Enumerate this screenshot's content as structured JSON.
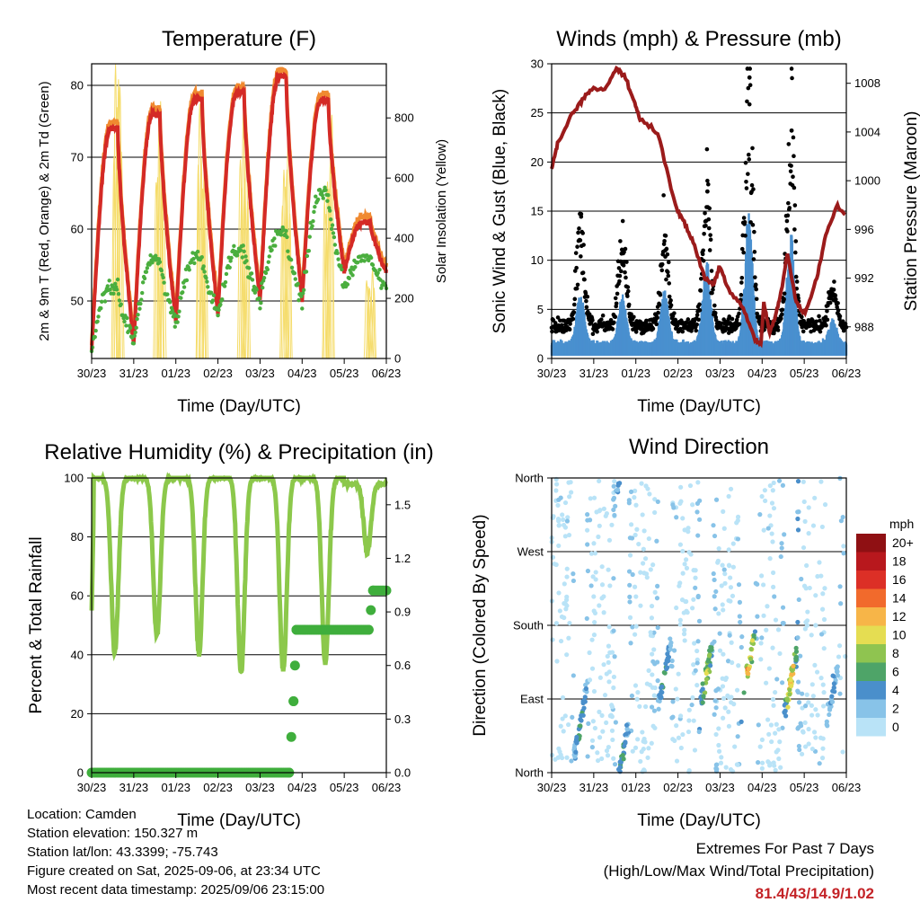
{
  "x_ticks": [
    "30/23",
    "31/23",
    "01/23",
    "02/23",
    "03/23",
    "04/23",
    "05/23",
    "06/23"
  ],
  "xlabel": "Time (Day/UTC)",
  "panels": {
    "temperature": {
      "title": "Temperature (F)",
      "ylabel_left": "2m & 9m T (Red, Orange) & 2m Td (Green)",
      "ylabel_right": "Solar Insolation (Yellow)",
      "left_ticks": [
        "50",
        "60",
        "70",
        "80"
      ],
      "right_ticks": [
        "0",
        "200",
        "400",
        "600",
        "800"
      ]
    },
    "winds": {
      "title": "Winds (mph) & Pressure (mb)",
      "ylabel_left": "Sonic Wind & Gust (Blue, Black)",
      "ylabel_right": "Station Pressure (Maroon)",
      "left_ticks": [
        "0",
        "5",
        "10",
        "15",
        "20",
        "25",
        "30"
      ],
      "right_ticks": [
        "988",
        "992",
        "996",
        "1000",
        "1004",
        "1008"
      ]
    },
    "humidity": {
      "title": "Relative Humidity (%) & Precipitation (in)",
      "ylabel_left": "Percent & Total Rainfall",
      "left_ticks": [
        "0",
        "20",
        "40",
        "60",
        "80",
        "100"
      ],
      "right_ticks": [
        "0.0",
        "0.3",
        "0.6",
        "0.9",
        "1.2",
        "1.5"
      ]
    },
    "direction": {
      "title": "Wind Direction",
      "ylabel_left": "Direction (Colored By Speed)",
      "dir_ticks": [
        "North",
        "East",
        "South",
        "West",
        "North"
      ],
      "legend_title": "mph",
      "legend_labels": [
        "0",
        "2",
        "4",
        "6",
        "8",
        "10",
        "12",
        "14",
        "16",
        "18",
        "20+"
      ],
      "legend_colors": [
        "#b9e3f7",
        "#88c3e8",
        "#4a8fcb",
        "#4ea468",
        "#8fc450",
        "#e5dd52",
        "#f7b548",
        "#f16a2c",
        "#dc2f26",
        "#b8181d",
        "#8f1013"
      ]
    }
  },
  "station_info": {
    "location": "Location: Camden",
    "elevation": "Station elevation: 150.327 m",
    "latlon": "Station lat/lon: 43.3399; -75.743",
    "created": "Figure created on Sat, 2025-09-06, at 23:34 UTC",
    "recent": "Most recent data timestamp: 2025/09/06 23:15:00"
  },
  "extremes": {
    "line1": "Extremes For Past 7 Days",
    "line2": "(High/Low/Max Wind/Total Precipitation)",
    "values": "81.4/43/14.9/1.02"
  },
  "colors": {
    "temp_2m": "#d42a26",
    "temp_9m": "#f08a30",
    "dewpoint": "#4aae3e",
    "solar": "#f5dc6a",
    "wind": "#4a90cf",
    "gust": "#000000",
    "pressure": "#9b1b1b",
    "rh": "#8cc84b",
    "precip": "#3fae3c"
  },
  "chart_data": [
    {
      "type": "line",
      "title": "Temperature (F)",
      "xlabel": "Time (Day/UTC)",
      "ylabel": "2m & 9m T (Red, Orange) & 2m Td (Green)",
      "y2label": "Solar Insolation (Yellow)",
      "x": [
        "30/23",
        "31/23",
        "01/23",
        "02/23",
        "03/23",
        "04/23",
        "05/23",
        "06/23"
      ],
      "ylim": [
        42,
        83
      ],
      "y2lim": [
        0,
        980
      ],
      "series": [
        {
          "name": "2m T",
          "color": "#d42a26",
          "day_max": [
            74,
            76,
            78,
            79,
            81.4,
            78,
            61
          ],
          "day_min": [
            43,
            44,
            47,
            48,
            50,
            50,
            54
          ]
        },
        {
          "name": "2m Td",
          "color": "#4aae3e",
          "day_max": [
            52,
            56,
            56,
            57,
            59,
            65,
            56
          ],
          "day_min": [
            43,
            44,
            47,
            48,
            50,
            50,
            52
          ]
        },
        {
          "name": "Solar",
          "color": "#f5dc6a",
          "day_peak": [
            980,
            920,
            900,
            870,
            860,
            870,
            300
          ]
        }
      ]
    },
    {
      "type": "scatter",
      "title": "Winds (mph) & Pressure (mb)",
      "xlabel": "Time (Day/UTC)",
      "ylabel": "Sonic Wind & Gust (Blue, Black)",
      "y2label": "Station Pressure (Maroon)",
      "x": [
        "30/23",
        "31/23",
        "01/23",
        "02/23",
        "03/23",
        "04/23",
        "05/23",
        "06/23"
      ],
      "ylim": [
        0,
        30
      ],
      "y2lim": [
        985.4,
        1009.6
      ],
      "series": [
        {
          "name": "Gust",
          "color": "#000000",
          "day_max": [
            14.7,
            11,
            11,
            17,
            28.6,
            23.2,
            7
          ]
        },
        {
          "name": "Wind",
          "color": "#4a90cf",
          "day_max": [
            6.5,
            6.5,
            7,
            10,
            14.9,
            13,
            4
          ]
        },
        {
          "name": "Pressure",
          "color": "#9b1b1b",
          "x_frac": [
            0,
            0.02,
            0.07,
            0.1,
            0.13,
            0.18,
            0.22,
            0.25,
            0.28,
            0.3,
            0.36,
            0.42,
            0.45,
            0.48,
            0.52,
            0.55,
            0.57,
            0.6,
            0.65,
            0.69,
            0.71,
            0.72,
            0.74,
            0.76,
            0.78,
            0.8,
            0.83,
            0.86,
            0.9,
            0.93,
            0.97,
            1.0
          ],
          "y": [
            1001,
            1003,
            1005.5,
            1006.5,
            1007.5,
            1007.5,
            1009.2,
            1008.5,
            1006.5,
            1005,
            1004,
            998,
            996.5,
            995,
            992,
            991.5,
            993,
            991,
            989.5,
            987,
            986.5,
            990,
            987.5,
            989,
            991,
            994,
            990,
            989,
            992,
            995.5,
            998,
            997
          ]
        }
      ]
    },
    {
      "type": "line",
      "title": "Relative Humidity (%) & Precipitation (in)",
      "xlabel": "Time (Day/UTC)",
      "ylabel": "Percent & Total Rainfall",
      "x": [
        "30/23",
        "31/23",
        "01/23",
        "02/23",
        "03/23",
        "04/23",
        "05/23",
        "06/23"
      ],
      "ylim": [
        0,
        100
      ],
      "y2lim": [
        0,
        1.65
      ],
      "series": [
        {
          "name": "RH",
          "color": "#8cc84b",
          "day_min": [
            41,
            46,
            40,
            34,
            35,
            37,
            75
          ],
          "day_max": [
            100,
            100,
            100,
            100,
            100,
            100,
            98
          ]
        },
        {
          "name": "Total Precipitation",
          "color": "#3fae3c",
          "x_frac": [
            0,
            0.67,
            0.685,
            0.695,
            0.72,
            0.94,
            0.955,
            1.0
          ],
          "y": [
            0,
            0,
            0.4,
            0.8,
            0.8,
            0.8,
            1.02,
            1.02
          ]
        }
      ]
    },
    {
      "type": "scatter",
      "title": "Wind Direction",
      "xlabel": "Time (Day/UTC)",
      "ylabel": "Direction (Colored By Speed)",
      "x": [
        "30/23",
        "31/23",
        "01/23",
        "02/23",
        "03/23",
        "04/23",
        "05/23",
        "06/23"
      ],
      "y_categories": [
        "North",
        "East",
        "South",
        "West",
        "North"
      ],
      "ylim": [
        0,
        360
      ],
      "color_scale": {
        "label": "mph",
        "levels": [
          "0",
          "2",
          "4",
          "6",
          "8",
          "10",
          "12",
          "14",
          "16",
          "18",
          "20+"
        ]
      }
    }
  ]
}
